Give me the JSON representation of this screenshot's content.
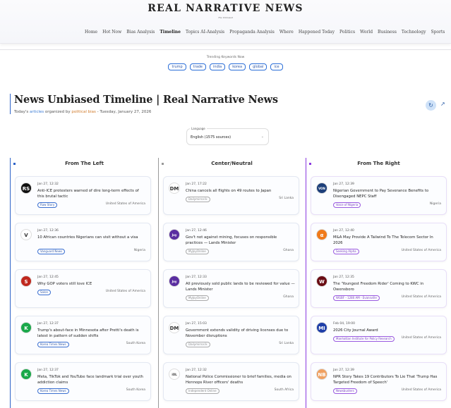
{
  "header": {
    "logo": "REAL NARRATIVE NEWS",
    "tagline": "The Unbiased",
    "nav": [
      "Home",
      "Hot Now",
      "Bias Analysis",
      "Timeline",
      "Topics AI-Analysis",
      "Propaganda Analysis",
      "Where",
      "Happened Today",
      "Politics",
      "World",
      "Business",
      "Technology",
      "Sports"
    ],
    "active_nav": "Timeline"
  },
  "trending": {
    "label": "Trending Keywords Now",
    "keywords": [
      "trump",
      "trade",
      "india",
      "korea",
      "global",
      "ice"
    ]
  },
  "page": {
    "title": "News Unbiased Timeline | Real Narrative News",
    "subtitle_1": "Today's ",
    "subtitle_2": "articles",
    "subtitle_3": " organized by ",
    "subtitle_4": "political bias",
    "subtitle_5": " - Tuesday, January 27, 2026"
  },
  "language": {
    "label": "Language",
    "value": "English (1575 sources)"
  },
  "colors": {
    "left": "#2d63c8",
    "center": "#999999",
    "right": "#8a3ae0"
  },
  "columns": [
    {
      "title": "From The Left",
      "articles": [
        {
          "date": "Jan 27, 12:32",
          "headline": "Anti-ICE protesters warned of dire long-term effects of this brutal tactic",
          "source": "Raw Story",
          "country": "United States of America",
          "icon": "RS",
          "icon_bg": "#111"
        },
        {
          "date": "Jan 27, 12:36",
          "headline": "10 African countries Nigerians can visit without a visa",
          "source": "Vanguard News",
          "country": "Nigeria",
          "icon": "V",
          "icon_bg": "#fff"
        },
        {
          "date": "Jan 27, 12:45",
          "headline": "Why GOP voters still love ICE",
          "source": "Salon",
          "country": "United States of America",
          "icon": "S",
          "icon_bg": "#c0281e"
        },
        {
          "date": "Jan 27, 12:37",
          "headline": "Trump's about-face in Minnesota after Pretti's death is latest in pattern of sudden shifts",
          "source": "Korea Times News",
          "country": "South Korea",
          "icon": "K",
          "icon_bg": "#1aa84a"
        },
        {
          "date": "Jan 27, 12:37",
          "headline": "Meta, TikTok and YouTube face landmark trial over youth addiction claims",
          "source": "Korea Times News",
          "country": "South Korea",
          "icon": "K",
          "icon_bg": "#1aa84a"
        }
      ]
    },
    {
      "title": "Center/Neutral",
      "articles": [
        {
          "date": "Jan 27, 17:22",
          "headline": "China cancels all flights on 49 routes to Japan",
          "source": "Dailymirror.lk",
          "country": "Sri Lanka",
          "icon": "DM",
          "icon_bg": "#fff"
        },
        {
          "date": "Jan 27, 12:46",
          "headline": "Gov't not against mining, focuses on responsible practices — Lands Minister",
          "source": "MyJoyOnline",
          "country": "Ghana",
          "icon": "Joy",
          "icon_bg": "#5a2ea0"
        },
        {
          "date": "Jan 27, 12:33",
          "headline": "All previously sold public lands to be reviewed for value — Lands Minister",
          "source": "MyJoyOnline",
          "country": "Ghana",
          "icon": "Joy",
          "icon_bg": "#5a2ea0"
        },
        {
          "date": "Jan 27, 15:03",
          "headline": "Government extends validity of driving licenses due to November disruptions",
          "source": "Dailymirror.lk",
          "country": "Sri Lanka",
          "icon": "DM",
          "icon_bg": "#fff"
        },
        {
          "date": "Jan 27, 12:32",
          "headline": "National Police Commissioner to brief families, media on Hennops River officers' deaths",
          "source": "Independent Online",
          "country": "South Africa",
          "icon": "iOL",
          "icon_bg": "#fff"
        }
      ]
    },
    {
      "title": "From The Right",
      "articles": [
        {
          "date": "Jan 27, 12:39",
          "headline": "Nigerian Government to Pay Severance Benefits to Disengaged NEPC Staff",
          "source": "Voice of Nigeria",
          "country": "Nigeria",
          "icon": "VON",
          "icon_bg": "#1d3f7a"
        },
        {
          "date": "Jan 27, 12:40",
          "headline": "M&A May Provide A Tailwind To The Telecom Sector In 2026",
          "source": "Seeking Alpha",
          "country": "United States of America",
          "icon": "α",
          "icon_bg": "#f07a1a"
        },
        {
          "date": "Jan 27, 12:35",
          "headline": "The 'Youngest Freedom Rider' Coming to KWC in Owensboro",
          "source": "WGBF - 1280 AM - Evansville",
          "country": "United States of America",
          "icon": "W",
          "icon_bg": "#6a0d14"
        },
        {
          "date": "Feb 04, 19:00",
          "headline": "2026 City Journal Award",
          "source": "Manhattan Institute for Policy Research",
          "country": "United States of America",
          "icon": "MI",
          "icon_bg": "#1f3fa8"
        },
        {
          "date": "Jan 27, 12:39",
          "headline": "NPR Story Takes 19 Contributors To Lie That 'Trump Has Targeted Freedom of Speech'",
          "source": "Newsbusters",
          "country": "United States of America",
          "icon": "NB",
          "icon_bg": "#f0a060"
        }
      ]
    }
  ]
}
